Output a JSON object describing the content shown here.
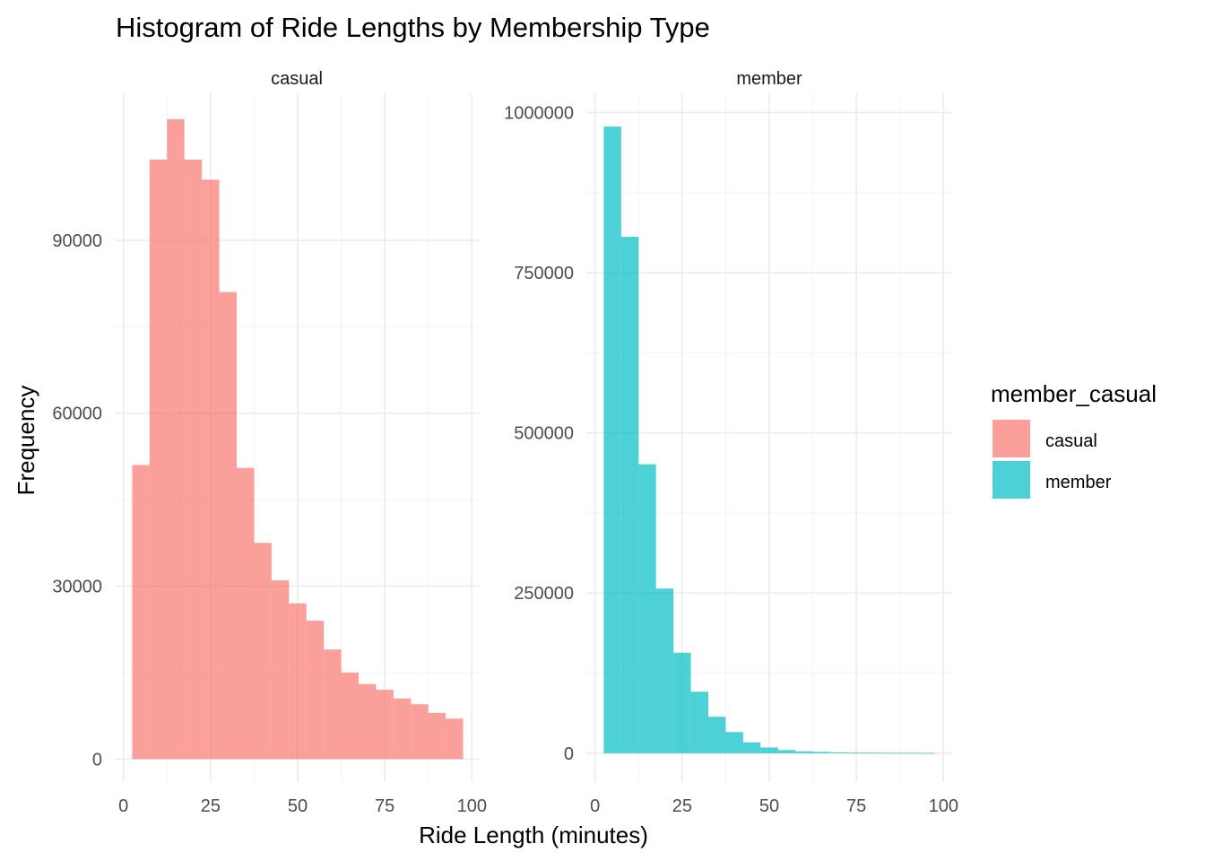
{
  "chart_data": {
    "type": "bar",
    "title": "Histogram of Ride Lengths by Membership Type",
    "xlabel": "Ride Length (minutes)",
    "ylabel": "Frequency",
    "grid": true,
    "legend": {
      "title": "member_casual",
      "placement": "right",
      "entries": [
        {
          "label": "casual",
          "color": "#F8766D"
        },
        {
          "label": "member",
          "color": "#00BFC4"
        }
      ]
    },
    "xlim": [
      -2.5,
      102.5
    ],
    "x_ticks": [
      0,
      25,
      50,
      75,
      100
    ],
    "x_tick_labels": [
      "0",
      "25",
      "50",
      "75",
      "100"
    ],
    "bin_width": 5,
    "bin_centers": [
      5,
      10,
      15,
      20,
      25,
      30,
      35,
      40,
      45,
      50,
      55,
      60,
      65,
      70,
      75,
      80,
      85,
      90,
      95
    ],
    "panels": [
      {
        "name": "casual",
        "color": "#F8766D",
        "ylim": [
          -4000,
          115500
        ],
        "y_ticks": [
          0,
          30000,
          60000,
          90000
        ],
        "y_tick_labels": [
          "0",
          "30000",
          "60000",
          "90000"
        ],
        "values": [
          51000,
          104000,
          111000,
          104000,
          100500,
          81000,
          50500,
          37500,
          31000,
          27000,
          24000,
          19000,
          15000,
          13000,
          12000,
          10500,
          9500,
          8000,
          7000
        ]
      },
      {
        "name": "member",
        "color": "#00BFC4",
        "ylim": [
          -45000,
          1030000
        ],
        "y_ticks": [
          0,
          250000,
          500000,
          750000,
          1000000
        ],
        "y_tick_labels": [
          "0",
          "250000",
          "500000",
          "750000",
          "1000000"
        ],
        "values": [
          978000,
          806000,
          451000,
          257000,
          157000,
          96000,
          57000,
          33000,
          17000,
          9000,
          5000,
          3000,
          2200,
          1500,
          1000,
          800,
          600,
          500,
          400
        ]
      }
    ]
  }
}
